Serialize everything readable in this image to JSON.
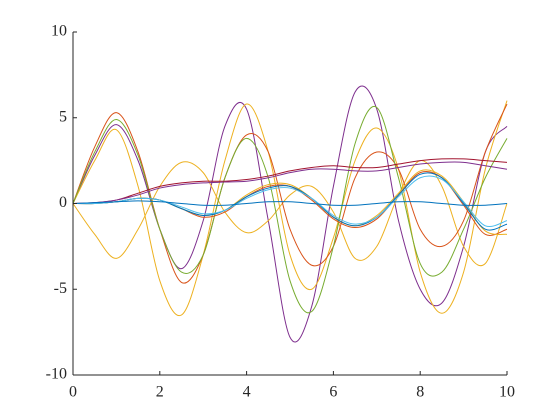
{
  "chart_data": {
    "type": "line",
    "x": [
      0,
      0.5,
      1,
      1.5,
      2,
      2.5,
      3,
      3.5,
      4,
      4.5,
      5,
      5.5,
      6,
      6.5,
      7,
      7.5,
      8,
      8.5,
      9,
      9.5,
      10
    ],
    "series": [
      {
        "color": "#7E2F8E",
        "values": [
          0,
          2.8,
          4.6,
          2.5,
          -1.5,
          -3.8,
          -1,
          4.5,
          5.5,
          -1,
          -7.8,
          -6,
          1,
          6.5,
          5.5,
          -1,
          -5,
          -5.8,
          -2.5,
          3,
          4.5
        ]
      },
      {
        "color": "#EDB120",
        "values": [
          0,
          2.5,
          4.3,
          1,
          -4.5,
          -6.5,
          -3,
          2.5,
          5.8,
          3,
          -3,
          -5,
          -2,
          2.5,
          4.4,
          2,
          -4,
          -6.4,
          -4,
          2,
          6
        ]
      },
      {
        "color": "#EDB120",
        "values": [
          0,
          -1.8,
          -3.2,
          -1.5,
          1,
          2.4,
          1.8,
          -0.5,
          -1.7,
          -1,
          0.5,
          1,
          -0.5,
          -3.2,
          -2.5,
          0.5,
          2.5,
          1,
          -2.5,
          -3.5,
          0
        ]
      },
      {
        "color": "#D95319",
        "values": [
          0,
          3.3,
          5.3,
          3,
          -1.5,
          -4.6,
          -3,
          1.5,
          4,
          3,
          -1.5,
          -3.6,
          -2.5,
          1.5,
          3,
          2,
          -1.5,
          -2.5,
          -1,
          3,
          5.8
        ]
      },
      {
        "color": "#77AC30",
        "values": [
          0,
          3,
          4.9,
          2.8,
          -1.5,
          -4,
          -3,
          1.5,
          3.8,
          1.5,
          -4.5,
          -6.3,
          -2.5,
          3.5,
          5.6,
          1.5,
          -3.5,
          -4,
          -1.5,
          1.5,
          3.8
        ]
      },
      {
        "color": "#A2142F",
        "values": [
          0,
          0.05,
          0.2,
          0.6,
          1,
          1.2,
          1.3,
          1.3,
          1.4,
          1.6,
          1.9,
          2.1,
          2.2,
          2.1,
          2.1,
          2.3,
          2.5,
          2.6,
          2.6,
          2.5,
          2.4
        ]
      },
      {
        "color": "#7E2F8E",
        "values": [
          0,
          0.05,
          0.2,
          0.5,
          0.9,
          1.1,
          1.2,
          1.25,
          1.3,
          1.5,
          1.8,
          2,
          2,
          1.9,
          1.9,
          2.1,
          2.3,
          2.4,
          2.4,
          2.2,
          2
        ]
      },
      {
        "color": "#D95319",
        "values": [
          0,
          0,
          0.1,
          0.3,
          0.2,
          -0.3,
          -0.8,
          -0.5,
          0.4,
          1,
          1,
          0.2,
          -0.9,
          -1.4,
          -0.9,
          0.5,
          1.8,
          1.5,
          -0.1,
          -1.8,
          -1.5
        ]
      },
      {
        "color": "#EDB120",
        "values": [
          0,
          0,
          0.1,
          0.3,
          0.2,
          -0.3,
          -0.7,
          -0.4,
          0.5,
          1.1,
          1.1,
          0.3,
          -0.8,
          -1.3,
          -0.7,
          0.6,
          1.9,
          1.6,
          0.1,
          -1.6,
          -1.8
        ]
      },
      {
        "color": "#0072BD",
        "values": [
          0,
          0,
          0.1,
          0.3,
          0.2,
          -0.3,
          -0.7,
          -0.4,
          0.4,
          0.9,
          1,
          0.3,
          -0.8,
          -1.3,
          -0.8,
          0.5,
          1.7,
          1.5,
          0,
          -1.5,
          -1.2
        ]
      },
      {
        "color": "#4DBEEE",
        "values": [
          0,
          0,
          0.1,
          0.3,
          0.2,
          -0.2,
          -0.6,
          -0.4,
          0.3,
          0.8,
          0.9,
          0.3,
          -0.7,
          -1.2,
          -0.8,
          0.4,
          1.5,
          1.4,
          0.1,
          -1.3,
          -1
        ]
      },
      {
        "color": "#0072BD",
        "values": [
          0,
          0.05,
          0.1,
          0.15,
          0.1,
          0,
          -0.1,
          -0.1,
          0,
          0.1,
          0.1,
          0,
          -0.1,
          -0.1,
          0,
          0.1,
          0.1,
          0,
          -0.1,
          -0.1,
          0
        ]
      }
    ],
    "xlim": [
      0,
      10
    ],
    "xticks": [
      0,
      2,
      4,
      6,
      8,
      10
    ],
    "ylim": [
      -10,
      10
    ],
    "yticks": [
      -10,
      -5,
      0,
      5,
      10
    ]
  }
}
